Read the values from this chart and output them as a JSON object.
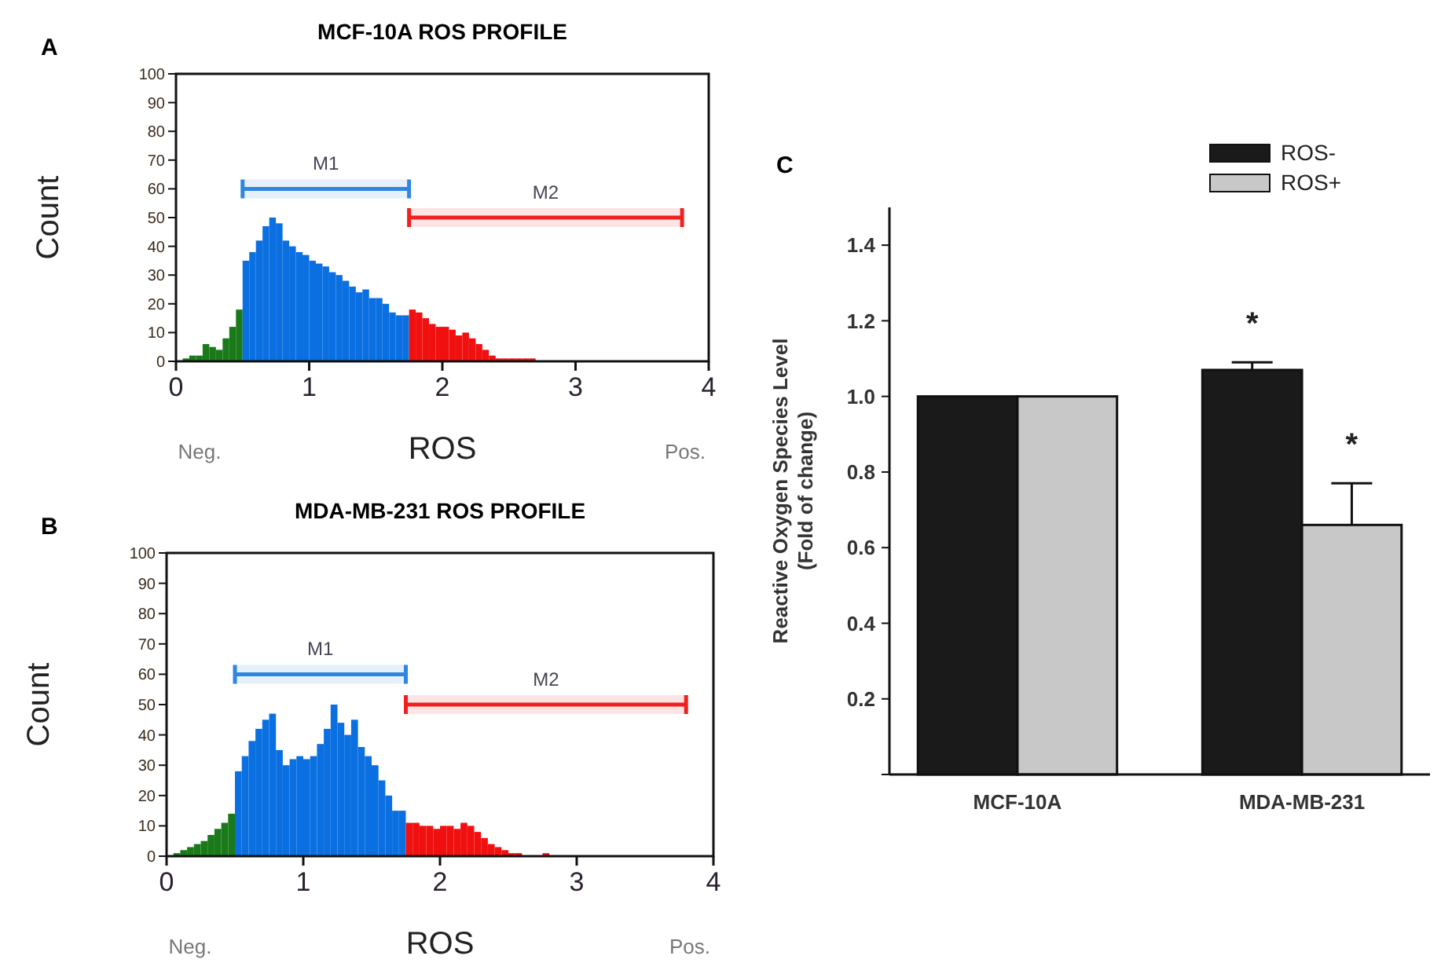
{
  "chart_data": [
    {
      "type": "histogram",
      "title": "MCF-10A ROS PROFILE",
      "xlabel": "ROS",
      "ylabel": "Count",
      "annotations": [
        "A",
        "Neg.",
        "Pos."
      ],
      "bins": [
        0,
        0.05,
        0.1,
        0.15,
        0.2,
        0.25,
        0.3,
        0.35,
        0.4,
        0.45,
        0.5,
        0.55,
        0.6,
        0.65,
        0.7,
        0.75,
        0.8,
        0.85,
        0.9,
        0.95,
        1,
        1.05,
        1.1,
        1.15,
        1.2,
        1.25,
        1.3,
        1.35,
        1.4,
        1.45,
        1.5,
        1.55,
        1.6,
        1.65,
        1.7,
        1.75,
        1.8,
        1.85,
        1.9,
        1.95,
        2,
        2.05,
        2.1,
        2.15,
        2.2,
        2.25,
        2.3,
        2.35,
        2.4,
        2.45,
        2.5,
        2.55,
        2.6,
        2.65,
        2.7,
        2.75,
        2.8,
        2.85,
        2.9,
        2.95,
        3,
        3.05,
        3.1,
        3.15,
        3.2,
        3.25,
        3.3,
        3.35,
        3.4,
        3.45,
        3.5,
        3.55,
        3.6,
        3.65,
        3.7,
        3.75,
        3.8,
        3.85,
        3.9,
        3.95,
        4
      ],
      "values": [
        0,
        1,
        2,
        2,
        6,
        5,
        4,
        8,
        12,
        18,
        35,
        38,
        42,
        47,
        50,
        48,
        42,
        40,
        38,
        37,
        35,
        34,
        33,
        31,
        30,
        28,
        26,
        24,
        25,
        22,
        22,
        20,
        17,
        16,
        16,
        18,
        17,
        15,
        13,
        12,
        12,
        11,
        9,
        10,
        8,
        6,
        4,
        2,
        1,
        1,
        1,
        1,
        1,
        1,
        0,
        0,
        0,
        0,
        0,
        0,
        0,
        0,
        0,
        0,
        0,
        0,
        0,
        0,
        0,
        0,
        0,
        0,
        0,
        0,
        0,
        0,
        0,
        0,
        0,
        0
      ],
      "colors": [
        "#1a7a1a",
        "#1a7a1a",
        "#1a7a1a",
        "#1a7a1a",
        "#1a7a1a",
        "#1a7a1a",
        "#1a7a1a",
        "#1a7a1a",
        "#1a7a1a",
        "#1a7a1a",
        "#0a6fe0",
        "#0a6fe0",
        "#0a6fe0",
        "#0a6fe0",
        "#0a6fe0",
        "#0a6fe0",
        "#0a6fe0",
        "#0a6fe0",
        "#0a6fe0",
        "#0a6fe0",
        "#0a6fe0",
        "#0a6fe0",
        "#0a6fe0",
        "#0a6fe0",
        "#0a6fe0",
        "#0a6fe0",
        "#0a6fe0",
        "#0a6fe0",
        "#0a6fe0",
        "#0a6fe0",
        "#0a6fe0",
        "#0a6fe0",
        "#0a6fe0",
        "#0a6fe0",
        "#0a6fe0",
        "#f01010",
        "#f01010",
        "#f01010",
        "#f01010",
        "#f01010",
        "#f01010",
        "#f01010",
        "#f01010",
        "#f01010",
        "#f01010",
        "#f01010",
        "#f01010",
        "#f01010",
        "#f01010",
        "#f01010",
        "#f01010",
        "#f01010",
        "#f01010",
        "#f01010",
        "#f01010",
        "#f01010",
        "#f01010",
        "#f01010",
        "#f01010",
        "#f01010",
        "#f01010",
        "#f01010",
        "#f01010",
        "#f01010",
        "#f01010",
        "#f01010",
        "#f01010",
        "#f01010",
        "#f01010",
        "#f01010",
        "#f01010",
        "#f01010",
        "#f01010",
        "#f01010",
        "#f01010",
        "#f01010",
        "#f01010",
        "#f01010",
        "#f01010",
        "#f01010"
      ],
      "xlim": [
        0,
        4
      ],
      "xticks": [
        0,
        1,
        2,
        3,
        4
      ],
      "ylim": [
        0,
        100
      ],
      "yticks": [
        0,
        10,
        20,
        30,
        40,
        50,
        60,
        70,
        80,
        90,
        100
      ],
      "bands": [
        {
          "axis": "x",
          "from": 0.5,
          "to": 1.75,
          "label": "M1",
          "color": "#2f86e0"
        },
        {
          "axis": "x",
          "from": 1.75,
          "to": 3.8,
          "label": "M2",
          "color": "#f02020"
        }
      ]
    },
    {
      "type": "histogram",
      "title": "MDA-MB-231 ROS PROFILE",
      "xlabel": "ROS",
      "ylabel": "Count",
      "annotations": [
        "B",
        "Neg.",
        "Pos."
      ],
      "bins": [
        0,
        0.05,
        0.1,
        0.15,
        0.2,
        0.25,
        0.3,
        0.35,
        0.4,
        0.45,
        0.5,
        0.55,
        0.6,
        0.65,
        0.7,
        0.75,
        0.8,
        0.85,
        0.9,
        0.95,
        1,
        1.05,
        1.1,
        1.15,
        1.2,
        1.25,
        1.3,
        1.35,
        1.4,
        1.45,
        1.5,
        1.55,
        1.6,
        1.65,
        1.7,
        1.75,
        1.8,
        1.85,
        1.9,
        1.95,
        2,
        2.05,
        2.1,
        2.15,
        2.2,
        2.25,
        2.3,
        2.35,
        2.4,
        2.45,
        2.5,
        2.55,
        2.6,
        2.65,
        2.7,
        2.75,
        2.8,
        2.85,
        2.9,
        2.95,
        3,
        3.05,
        3.1,
        3.15,
        3.2,
        3.25,
        3.3,
        3.35,
        3.4,
        3.45,
        3.5,
        3.55,
        3.6,
        3.65,
        3.7,
        3.75,
        3.8,
        3.85,
        3.9,
        3.95,
        4
      ],
      "values": [
        0,
        1,
        2,
        3,
        4,
        5,
        7,
        9,
        11,
        14,
        28,
        33,
        38,
        42,
        45,
        47,
        35,
        30,
        32,
        33,
        32,
        33,
        37,
        42,
        50,
        44,
        40,
        45,
        36,
        33,
        30,
        25,
        20,
        15,
        15,
        11,
        11,
        10,
        10,
        9,
        10,
        10,
        9,
        11,
        10,
        8,
        6,
        4,
        3,
        2,
        1,
        1,
        0,
        0,
        0,
        1,
        0,
        0,
        0,
        0,
        0,
        0,
        0,
        0,
        0,
        0,
        0,
        0,
        0,
        0,
        0,
        0,
        0,
        0,
        0,
        0,
        0,
        0,
        0,
        0
      ],
      "colors": [
        "#1a7a1a",
        "#1a7a1a",
        "#1a7a1a",
        "#1a7a1a",
        "#1a7a1a",
        "#1a7a1a",
        "#1a7a1a",
        "#1a7a1a",
        "#1a7a1a",
        "#1a7a1a",
        "#0a6fe0",
        "#0a6fe0",
        "#0a6fe0",
        "#0a6fe0",
        "#0a6fe0",
        "#0a6fe0",
        "#0a6fe0",
        "#0a6fe0",
        "#0a6fe0",
        "#0a6fe0",
        "#0a6fe0",
        "#0a6fe0",
        "#0a6fe0",
        "#0a6fe0",
        "#0a6fe0",
        "#0a6fe0",
        "#0a6fe0",
        "#0a6fe0",
        "#0a6fe0",
        "#0a6fe0",
        "#0a6fe0",
        "#0a6fe0",
        "#0a6fe0",
        "#0a6fe0",
        "#0a6fe0",
        "#f01010",
        "#f01010",
        "#f01010",
        "#f01010",
        "#f01010",
        "#f01010",
        "#f01010",
        "#f01010",
        "#f01010",
        "#f01010",
        "#f01010",
        "#f01010",
        "#f01010",
        "#f01010",
        "#f01010",
        "#f01010",
        "#f01010",
        "#f01010",
        "#f01010",
        "#f01010",
        "#f01010",
        "#f01010",
        "#f01010",
        "#f01010",
        "#f01010",
        "#f01010",
        "#f01010",
        "#f01010",
        "#f01010",
        "#f01010",
        "#f01010",
        "#f01010",
        "#f01010",
        "#f01010",
        "#f01010",
        "#f01010",
        "#f01010",
        "#f01010",
        "#f01010",
        "#f01010",
        "#f01010",
        "#f01010",
        "#f01010",
        "#f01010",
        "#f01010"
      ],
      "xlim": [
        0,
        4
      ],
      "xticks": [
        0,
        1,
        2,
        3,
        4
      ],
      "ylim": [
        0,
        100
      ],
      "yticks": [
        0,
        10,
        20,
        30,
        40,
        50,
        60,
        70,
        80,
        90,
        100
      ],
      "bands": [
        {
          "axis": "x",
          "from": 0.5,
          "to": 1.75,
          "label": "M1",
          "color": "#2f86e0"
        },
        {
          "axis": "x",
          "from": 1.75,
          "to": 3.8,
          "label": "M2",
          "color": "#f02020"
        }
      ]
    },
    {
      "type": "bar",
      "ylabel": "Reactive Oxygen Species Level\n(Fold of change)",
      "annotations": [
        "C",
        "*",
        "*"
      ],
      "categories": [
        "MCF-10A",
        "MDA-MB-231"
      ],
      "series": [
        {
          "name": "ROS-",
          "color": "#1a1a1a",
          "values": [
            1.0,
            1.07
          ],
          "errors": [
            null,
            [
              1.07,
              1.09
            ]
          ]
        },
        {
          "name": "ROS+",
          "color": "#c8c8c8",
          "values": [
            1.0,
            0.66
          ],
          "errors": [
            null,
            [
              0.66,
              0.77
            ]
          ]
        }
      ],
      "ylim": [
        0,
        1.5
      ],
      "yticks": [
        {
          "value": 0,
          "label": null
        },
        0.2,
        0.4,
        0.6,
        0.8,
        {
          "value": 1,
          "label": "1.0"
        },
        1.2,
        1.4
      ],
      "legend": "top right"
    }
  ]
}
